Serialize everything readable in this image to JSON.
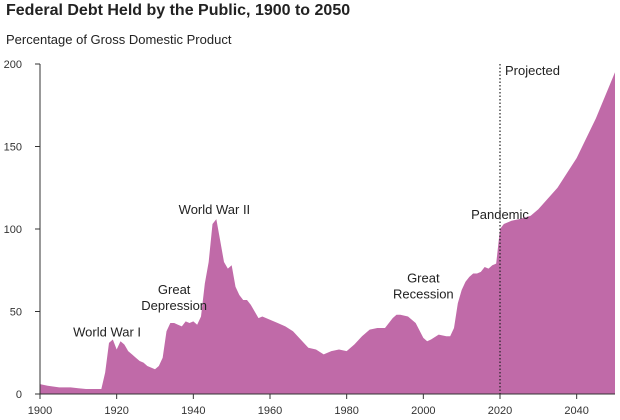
{
  "chart_data": {
    "type": "area",
    "title": "Federal Debt Held by the Public, 1900 to 2050",
    "subtitle": "Percentage of Gross Domestic Product",
    "xlabel": "",
    "ylabel": "",
    "xlim": [
      1900,
      2050
    ],
    "ylim": [
      0,
      200
    ],
    "x_ticks": [
      1900,
      1920,
      1940,
      1960,
      1980,
      2000,
      2020,
      2040
    ],
    "y_ticks": [
      0,
      50,
      100,
      150,
      200
    ],
    "grid": false,
    "color": "#c06aa8",
    "projection_start": 2020,
    "projection_label": "Projected",
    "annotations": [
      {
        "text": "World War I",
        "x": 1917.5,
        "y": 35
      },
      {
        "text": "Great\nDepression",
        "x": 1935,
        "y": 51
      },
      {
        "text": "World War II",
        "x": 1945.5,
        "y": 109
      },
      {
        "text": "Great\nRecession",
        "x": 2000,
        "y": 58
      },
      {
        "text": "Pandemic",
        "x": 2020,
        "y": 106
      }
    ],
    "x": [
      1900,
      1902,
      1905,
      1908,
      1910,
      1912,
      1914,
      1916,
      1917,
      1918,
      1919,
      1920,
      1921,
      1922,
      1923,
      1924,
      1925,
      1926,
      1927,
      1928,
      1929,
      1930,
      1931,
      1932,
      1933,
      1934,
      1935,
      1936,
      1937,
      1938,
      1939,
      1940,
      1941,
      1942,
      1943,
      1944,
      1945,
      1946,
      1947,
      1948,
      1949,
      1950,
      1951,
      1952,
      1953,
      1954,
      1955,
      1956,
      1957,
      1958,
      1959,
      1960,
      1962,
      1964,
      1966,
      1968,
      1970,
      1972,
      1974,
      1976,
      1978,
      1980,
      1982,
      1984,
      1986,
      1988,
      1990,
      1992,
      1993,
      1994,
      1996,
      1998,
      2000,
      2001,
      2002,
      2004,
      2006,
      2007,
      2008,
      2009,
      2010,
      2011,
      2012,
      2013,
      2014,
      2015,
      2016,
      2017,
      2018,
      2019,
      2020,
      2021,
      2022,
      2023,
      2025,
      2028,
      2030,
      2035,
      2040,
      2045,
      2050
    ],
    "values": [
      6,
      5,
      4,
      4,
      3.5,
      3,
      3,
      3,
      13,
      31,
      33,
      27,
      32,
      30,
      26,
      24,
      22,
      20,
      19,
      17,
      16,
      15,
      17,
      22,
      38,
      43,
      43,
      42,
      41,
      44,
      43,
      44,
      42,
      47,
      67,
      80,
      103,
      106,
      93,
      80,
      76,
      78,
      65,
      60,
      57,
      57,
      54,
      50,
      46,
      47,
      46,
      45,
      43,
      41,
      38,
      33,
      28,
      27,
      24,
      26,
      27,
      26,
      30,
      35,
      39,
      40,
      40,
      46,
      48,
      48,
      47,
      43,
      34,
      32,
      33,
      36,
      35,
      35,
      40,
      55,
      63,
      68,
      71,
      73,
      73,
      74,
      77,
      76,
      78,
      79,
      100,
      103,
      104,
      105,
      106,
      108,
      112,
      125,
      143,
      167,
      195
    ]
  }
}
